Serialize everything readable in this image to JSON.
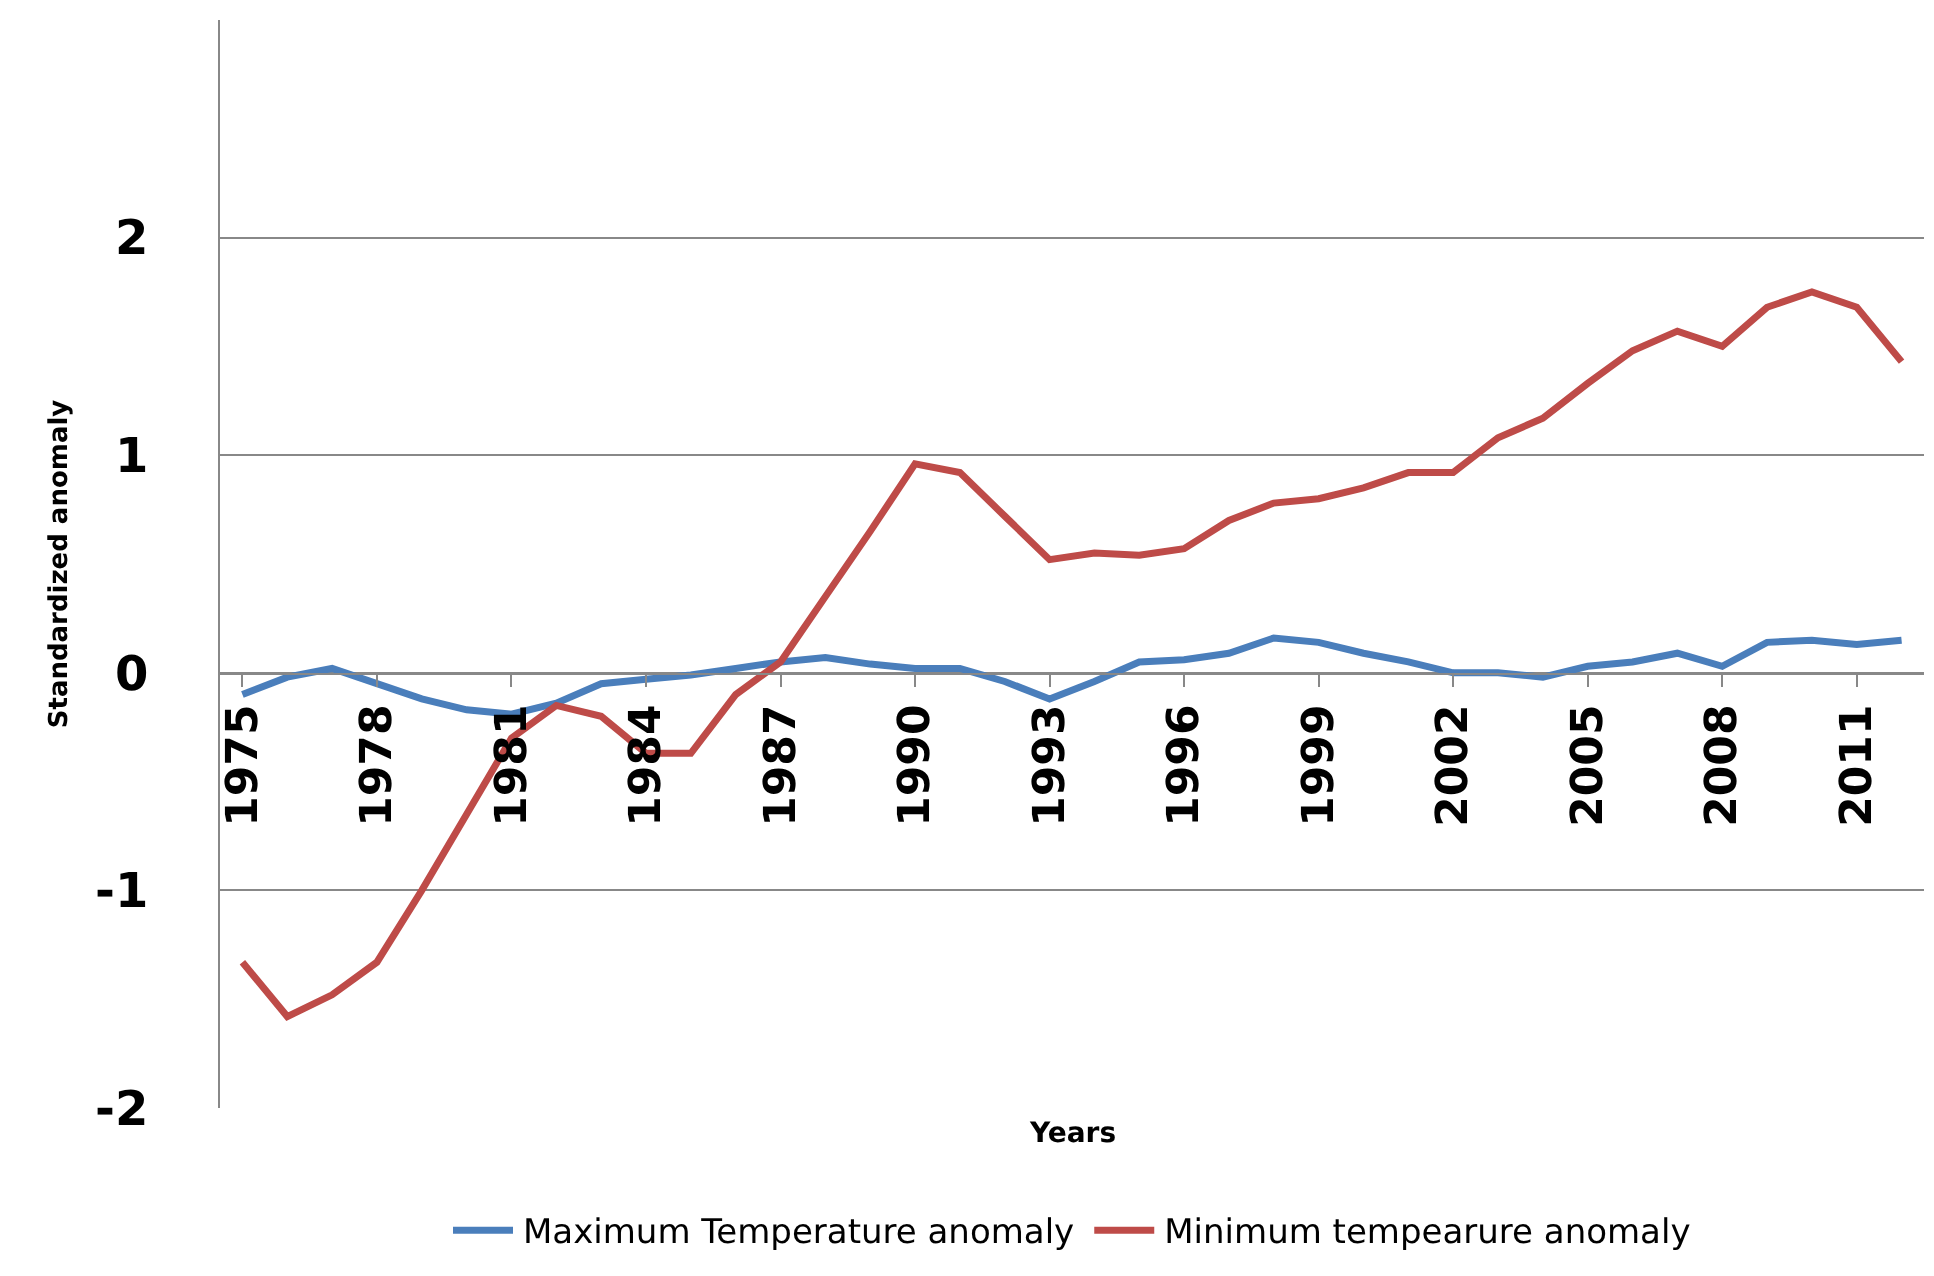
{
  "chart_data": {
    "type": "line",
    "xlabel": "Years",
    "ylabel": "Standardized anomaly",
    "x": [
      1975,
      1976,
      1977,
      1978,
      1979,
      1980,
      1981,
      1982,
      1983,
      1984,
      1985,
      1986,
      1987,
      1988,
      1989,
      1990,
      1991,
      1992,
      1993,
      1994,
      1995,
      1996,
      1997,
      1998,
      1999,
      2000,
      2001,
      2002,
      2003,
      2004,
      2005,
      2006,
      2007,
      2008,
      2009,
      2010,
      2011,
      2012
    ],
    "series": [
      {
        "name": "Maximum Temperature anomaly",
        "color": "#4a7ebb",
        "values": [
          -0.1,
          -0.02,
          0.02,
          -0.05,
          -0.12,
          -0.17,
          -0.19,
          -0.14,
          -0.05,
          -0.03,
          -0.01,
          0.02,
          0.05,
          0.07,
          0.04,
          0.02,
          0.02,
          -0.04,
          -0.12,
          -0.04,
          0.05,
          0.06,
          0.09,
          0.16,
          0.14,
          0.09,
          0.05,
          0.0,
          0.0,
          -0.02,
          0.03,
          0.05,
          0.09,
          0.03,
          0.14,
          0.15,
          0.13,
          0.15
        ]
      },
      {
        "name": "Minimum tempearure anomaly",
        "color": "#be4b48",
        "values": [
          -1.33,
          -1.58,
          -1.48,
          -1.33,
          -1.0,
          -0.65,
          -0.3,
          -0.15,
          -0.2,
          -0.37,
          -0.37,
          -0.1,
          0.05,
          0.35,
          0.65,
          0.96,
          0.92,
          0.72,
          0.52,
          0.55,
          0.54,
          0.57,
          0.7,
          0.78,
          0.8,
          0.85,
          0.92,
          0.92,
          1.08,
          1.17,
          1.33,
          1.48,
          1.57,
          1.5,
          1.68,
          1.75,
          1.68,
          1.43
        ]
      }
    ],
    "xlim": [
      1974.5,
      2012.5
    ],
    "xticks": [
      1975,
      1978,
      1981,
      1984,
      1987,
      1990,
      1993,
      1996,
      1999,
      2002,
      2005,
      2008,
      2011
    ],
    "ylim": [
      -2,
      3
    ],
    "yticks": [
      -2,
      -1,
      0,
      1,
      2
    ],
    "grid": "y",
    "legend": "bottom",
    "marker": "none",
    "line_style": "solid"
  }
}
